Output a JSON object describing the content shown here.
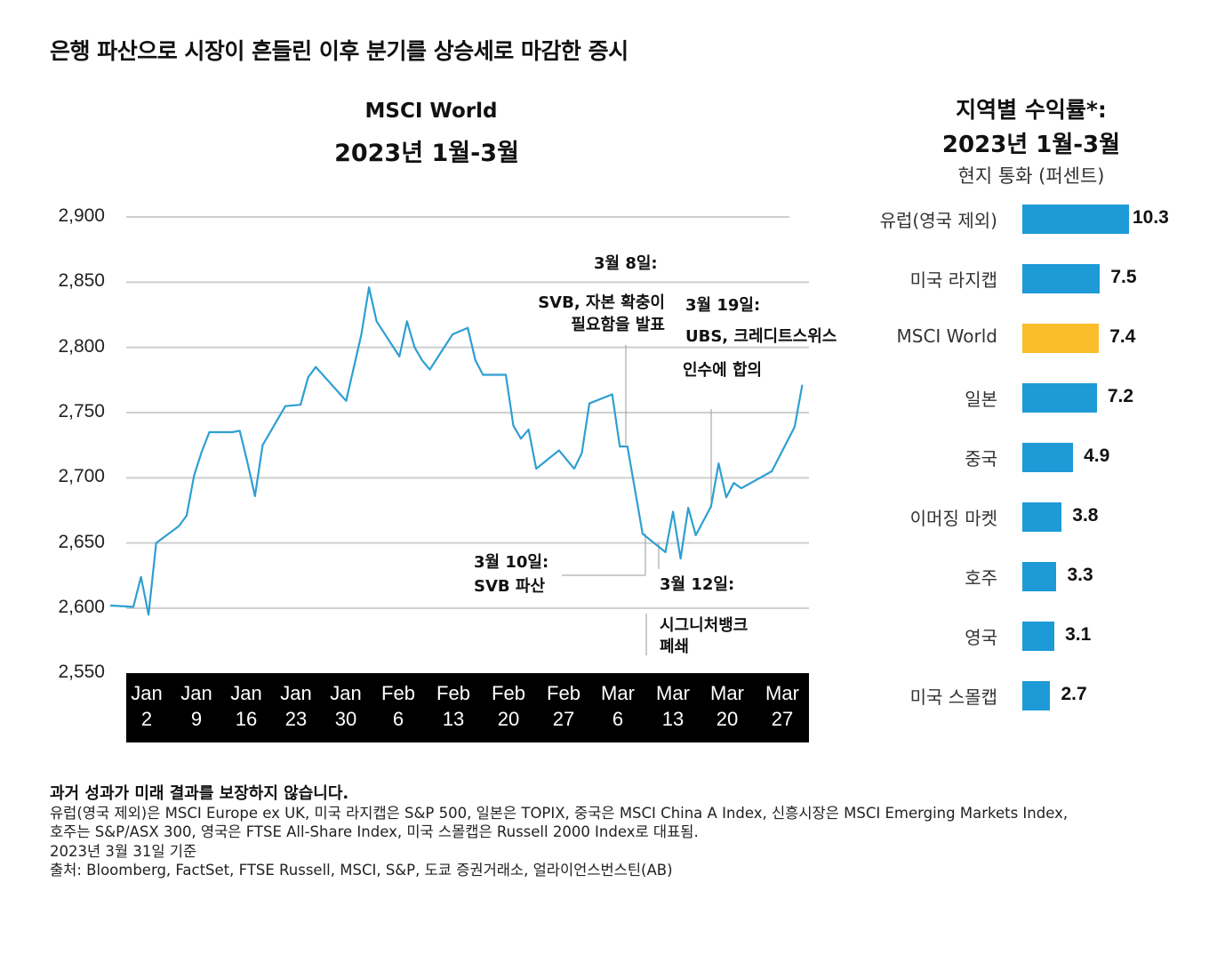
{
  "title": "은행 파산으로 시장이 흔들린 이후 분기를 상승세로 마감한 증시",
  "chart_data": [
    {
      "type": "line",
      "title": "MSCI World",
      "subtitle": "2023년 1월-3월",
      "ylim": [
        2550,
        2900
      ],
      "yticks": [
        "2,900",
        "2,850",
        "2,800",
        "2,750",
        "2,700",
        "2,650",
        "2,600",
        "2,550"
      ],
      "ytick_values": [
        2900,
        2850,
        2800,
        2750,
        2700,
        2650,
        2600,
        2550
      ],
      "xticks": [
        [
          "Jan",
          "2"
        ],
        [
          "Jan",
          "9"
        ],
        [
          "Jan",
          "16"
        ],
        [
          "Jan",
          "23"
        ],
        [
          "Jan",
          "30"
        ],
        [
          "Feb",
          "6"
        ],
        [
          "Feb",
          "13"
        ],
        [
          "Feb",
          "20"
        ],
        [
          "Feb",
          "27"
        ],
        [
          "Mar",
          "6"
        ],
        [
          "Mar",
          "13"
        ],
        [
          "Mar",
          "20"
        ],
        [
          "Mar",
          "27"
        ]
      ],
      "grid": true,
      "line_color": "#2e9fd2",
      "x": [
        "2022-12-30",
        "2023-01-02",
        "2023-01-03",
        "2023-01-04",
        "2023-01-05",
        "2023-01-08",
        "2023-01-09",
        "2023-01-10",
        "2023-01-11",
        "2023-01-12",
        "2023-01-15",
        "2023-01-16",
        "2023-01-17",
        "2023-01-18",
        "2023-01-19",
        "2023-01-22",
        "2023-01-24",
        "2023-01-25",
        "2023-01-26",
        "2023-01-30",
        "2023-02-01",
        "2023-02-02",
        "2023-02-03",
        "2023-02-06",
        "2023-02-07",
        "2023-02-08",
        "2023-02-09",
        "2023-02-10",
        "2023-02-13",
        "2023-02-15",
        "2023-02-16",
        "2023-02-17",
        "2023-02-20",
        "2023-02-21",
        "2023-02-22",
        "2023-02-23",
        "2023-02-24",
        "2023-02-27",
        "2023-03-01",
        "2023-03-02",
        "2023-03-03",
        "2023-03-06",
        "2023-03-07",
        "2023-03-08",
        "2023-03-10",
        "2023-03-13",
        "2023-03-14",
        "2023-03-15",
        "2023-03-16",
        "2023-03-17",
        "2023-03-19",
        "2023-03-20",
        "2023-03-21",
        "2023-03-22",
        "2023-03-23",
        "2023-03-27",
        "2023-03-30",
        "2023-03-31"
      ],
      "values": [
        2602,
        2601,
        2624,
        2595,
        2650,
        2663,
        2671,
        2702,
        2720,
        2735,
        2735,
        2736,
        2712,
        2686,
        2725,
        2755,
        2756,
        2777,
        2785,
        2759,
        2810,
        2846,
        2820,
        2793,
        2820,
        2800,
        2790,
        2783,
        2810,
        2815,
        2790,
        2779,
        2779,
        2740,
        2730,
        2737,
        2707,
        2721,
        2707,
        2719,
        2757,
        2764,
        2724,
        2724,
        2657,
        2643,
        2674,
        2638,
        2677,
        2656,
        2678,
        2711,
        2685,
        2696,
        2692,
        2705,
        2739,
        2771
      ],
      "annotations": [
        {
          "lines": [
            "3월 8일:"
          ]
        },
        {
          "lines": [
            "SVB, 자본 확충이",
            "필요함을 발표"
          ]
        },
        {
          "lines": [
            "3월 19일:",
            "UBS, 크레디트스위스",
            "인수에 합의"
          ]
        },
        {
          "lines": [
            "3월 10일:",
            "SVB 파산"
          ]
        },
        {
          "lines": [
            "3월 12일:",
            "시그니처뱅크",
            "폐쇄"
          ]
        }
      ]
    },
    {
      "type": "bar",
      "orientation": "horizontal",
      "title": "지역별 수익률*:",
      "subtitle": "2023년 1월-3월",
      "unit_label": "현지 통화 (퍼센트)",
      "categories": [
        "유럽(영국 제외)",
        "미국 라지캡",
        "MSCI World",
        "일본",
        "중국",
        "이머징 마켓",
        "호주",
        "영국",
        "미국 스몰캡"
      ],
      "values": [
        10.3,
        7.5,
        7.4,
        7.2,
        4.9,
        3.8,
        3.3,
        3.1,
        2.7
      ],
      "value_labels": [
        "10.3",
        "7.5",
        "7.4",
        "7.2",
        "4.9",
        "3.8",
        "3.3",
        "3.1",
        "2.7"
      ],
      "colors": [
        "#1e9ad6",
        "#1e9ad6",
        "#fbbd2a",
        "#1e9ad6",
        "#1e9ad6",
        "#1e9ad6",
        "#1e9ad6",
        "#1e9ad6",
        "#1e9ad6"
      ]
    }
  ],
  "footnote": {
    "heading": "과거 성과가 미래 결과를 보장하지 않습니다.",
    "lines": [
      "유럽(영국 제외)은 MSCI Europe ex UK, 미국 라지캡은 S&P 500, 일본은 TOPIX, 중국은 MSCI China A Index, 신흥시장은 MSCI Emerging Markets Index,",
      "호주는 S&P/ASX 300, 영국은 FTSE All-Share Index, 미국 스몰캡은 Russell 2000 Index로 대표됨.",
      "2023년 3월 31일 기준",
      "출처: Bloomberg, FactSet, FTSE Russell, MSCI, S&P, 도쿄 증권거래소, 얼라이언스번스틴(AB)"
    ]
  }
}
